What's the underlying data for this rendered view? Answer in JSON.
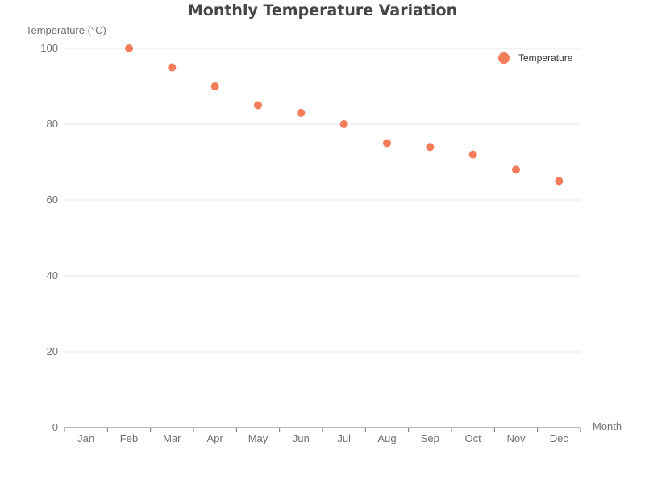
{
  "chart_data": {
    "type": "scatter",
    "title": "Monthly Temperature Variation",
    "xlabel": "Month",
    "ylabel": "Temperature (°C)",
    "categories": [
      "Jan",
      "Feb",
      "Mar",
      "Apr",
      "May",
      "Jun",
      "Jul",
      "Aug",
      "Sep",
      "Oct",
      "Nov",
      "Dec"
    ],
    "series": [
      {
        "name": "Temperature",
        "points": [
          {
            "x": "Feb",
            "y": 100
          },
          {
            "x": "Mar",
            "y": 95
          },
          {
            "x": "Apr",
            "y": 90
          },
          {
            "x": "May",
            "y": 85
          },
          {
            "x": "Jun",
            "y": 83
          },
          {
            "x": "Jul",
            "y": 80
          },
          {
            "x": "Aug",
            "y": 75
          },
          {
            "x": "Sep",
            "y": 74
          },
          {
            "x": "Oct",
            "y": 72
          },
          {
            "x": "Nov",
            "y": 68
          },
          {
            "x": "Dec",
            "y": 65
          }
        ],
        "color": "#f47c5a"
      }
    ],
    "ylim": [
      0,
      100
    ],
    "yticks": [
      0,
      20,
      40,
      60,
      80,
      100
    ],
    "grid": true,
    "legend_position": "top-right"
  }
}
